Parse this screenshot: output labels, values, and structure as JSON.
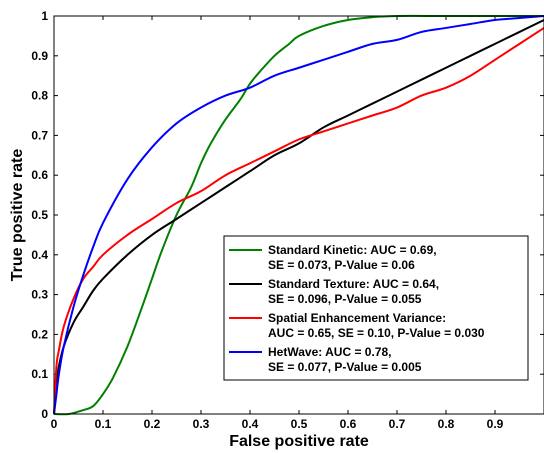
{
  "chart_data": {
    "type": "line",
    "xlabel": "False positive rate",
    "ylabel": "True positive rate",
    "xlim": [
      0,
      1
    ],
    "ylim": [
      0,
      1
    ],
    "xticks": [
      "0",
      "0.1",
      "0.2",
      "0.3",
      "0.4",
      "0.5",
      "0.6",
      "0.7",
      "0.8",
      "0.9"
    ],
    "yticks": [
      "0",
      "0.1",
      "0.2",
      "0.3",
      "0.4",
      "0.5",
      "0.6",
      "0.7",
      "0.8",
      "0.9",
      "1"
    ],
    "grid": false,
    "legend_position": "bottom-right",
    "series": [
      {
        "name": "Standard Kinetic: AUC = 0.69, SE = 0.073, P-Value = 0.06",
        "legend_lines": [
          "Standard Kinetic: AUC = 0.69,",
          "SE = 0.073, P-Value = 0.06"
        ],
        "color": "#008000",
        "x": [
          0,
          0.03,
          0.06,
          0.08,
          0.1,
          0.12,
          0.15,
          0.18,
          0.2,
          0.22,
          0.25,
          0.28,
          0.3,
          0.32,
          0.35,
          0.38,
          0.4,
          0.42,
          0.45,
          0.48,
          0.5,
          0.55,
          0.6,
          0.65,
          0.7,
          0.8,
          0.9,
          1.0
        ],
        "y": [
          0,
          0.0,
          0.01,
          0.02,
          0.05,
          0.09,
          0.17,
          0.27,
          0.34,
          0.41,
          0.5,
          0.57,
          0.63,
          0.68,
          0.74,
          0.79,
          0.83,
          0.86,
          0.9,
          0.93,
          0.95,
          0.975,
          0.99,
          0.997,
          1.0,
          1.0,
          1.0,
          1.0
        ]
      },
      {
        "name": "Standard Texture: AUC = 0.64, SE = 0.096, P-Value = 0.055",
        "legend_lines": [
          "Standard Texture: AUC = 0.64,",
          "SE = 0.096, P-Value = 0.055"
        ],
        "color": "#000000",
        "x": [
          0,
          0.005,
          0.01,
          0.02,
          0.04,
          0.06,
          0.08,
          0.1,
          0.15,
          0.2,
          0.25,
          0.3,
          0.35,
          0.4,
          0.45,
          0.5,
          0.55,
          0.6,
          0.65,
          0.7,
          0.75,
          0.8,
          0.85,
          0.9,
          0.95,
          1.0
        ],
        "y": [
          0,
          0.08,
          0.12,
          0.17,
          0.23,
          0.27,
          0.31,
          0.34,
          0.4,
          0.45,
          0.49,
          0.53,
          0.57,
          0.61,
          0.65,
          0.68,
          0.72,
          0.75,
          0.78,
          0.81,
          0.84,
          0.87,
          0.9,
          0.93,
          0.96,
          0.99
        ]
      },
      {
        "name": "Spatial Enhancement Variance: AUC = 0.65, SE = 0.10, P-Value = 0.030",
        "legend_lines": [
          "Spatial Enhancement Variance:",
          "AUC = 0.65, SE = 0.10, P-Value = 0.030"
        ],
        "color": "#ff0000",
        "x": [
          0,
          0.005,
          0.01,
          0.02,
          0.04,
          0.06,
          0.08,
          0.1,
          0.15,
          0.2,
          0.25,
          0.3,
          0.35,
          0.4,
          0.45,
          0.5,
          0.55,
          0.6,
          0.65,
          0.7,
          0.75,
          0.8,
          0.85,
          0.9,
          0.95,
          1.0
        ],
        "y": [
          0,
          0.12,
          0.16,
          0.22,
          0.29,
          0.34,
          0.37,
          0.4,
          0.45,
          0.49,
          0.53,
          0.56,
          0.6,
          0.63,
          0.66,
          0.69,
          0.71,
          0.73,
          0.75,
          0.77,
          0.8,
          0.82,
          0.85,
          0.89,
          0.93,
          0.97
        ]
      },
      {
        "name": "HetWave: AUC = 0.78, SE = 0.077, P-Value = 0.005",
        "legend_lines": [
          "HetWave: AUC = 0.78,",
          "SE = 0.077, P-Value = 0.005"
        ],
        "color": "#0000ff",
        "x": [
          0,
          0.005,
          0.01,
          0.02,
          0.04,
          0.06,
          0.08,
          0.1,
          0.15,
          0.2,
          0.25,
          0.3,
          0.35,
          0.4,
          0.45,
          0.5,
          0.55,
          0.6,
          0.65,
          0.7,
          0.75,
          0.8,
          0.85,
          0.9,
          0.95,
          1.0
        ],
        "y": [
          0,
          0.05,
          0.1,
          0.17,
          0.27,
          0.35,
          0.42,
          0.48,
          0.59,
          0.67,
          0.73,
          0.77,
          0.8,
          0.82,
          0.85,
          0.87,
          0.89,
          0.91,
          0.93,
          0.94,
          0.96,
          0.97,
          0.98,
          0.99,
          0.995,
          1.0
        ]
      }
    ]
  }
}
